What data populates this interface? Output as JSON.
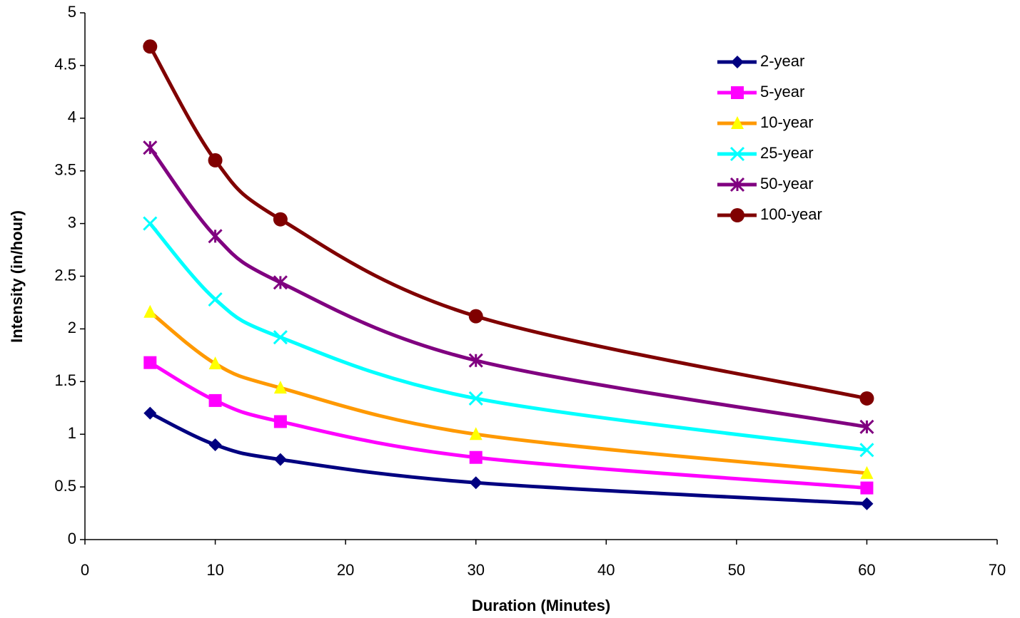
{
  "chart_data": {
    "type": "line",
    "smooth": true,
    "x_label": "Duration (Minutes)",
    "y_label": "Intensity (in/hour)",
    "x": [
      5,
      10,
      15,
      30,
      60
    ],
    "series": [
      {
        "name": "2-year",
        "color": "#000080",
        "marker_color": "#000080",
        "marker": "diamond",
        "values": [
          1.2,
          0.9,
          0.76,
          0.54,
          0.34
        ]
      },
      {
        "name": "5-year",
        "color": "#ff00ff",
        "marker_color": "#ff00ff",
        "marker": "square",
        "values": [
          1.68,
          1.32,
          1.12,
          0.78,
          0.49
        ]
      },
      {
        "name": "10-year",
        "color": "#ff9900",
        "marker_color": "#ffff00",
        "marker": "triangle",
        "values": [
          2.16,
          1.67,
          1.44,
          1.0,
          0.63
        ]
      },
      {
        "name": "25-year",
        "color": "#00ffff",
        "marker_color": "#00ffff",
        "marker": "x",
        "values": [
          3.0,
          2.28,
          1.92,
          1.34,
          0.85
        ]
      },
      {
        "name": "50-year",
        "color": "#800080",
        "marker_color": "#800080",
        "marker": "star",
        "values": [
          3.72,
          2.88,
          2.44,
          1.7,
          1.07
        ]
      },
      {
        "name": "100-year",
        "color": "#800000",
        "marker_color": "#800000",
        "marker": "circle",
        "values": [
          4.68,
          3.6,
          3.04,
          2.12,
          1.34
        ]
      }
    ],
    "xlim": [
      0,
      70
    ],
    "xticks": [
      0,
      10,
      20,
      30,
      40,
      50,
      60,
      70
    ],
    "ylim": [
      0,
      5
    ],
    "yticks": [
      0,
      0.5,
      1,
      1.5,
      2,
      2.5,
      3,
      3.5,
      4,
      4.5,
      5
    ],
    "grid": false,
    "legend": "top-right"
  }
}
